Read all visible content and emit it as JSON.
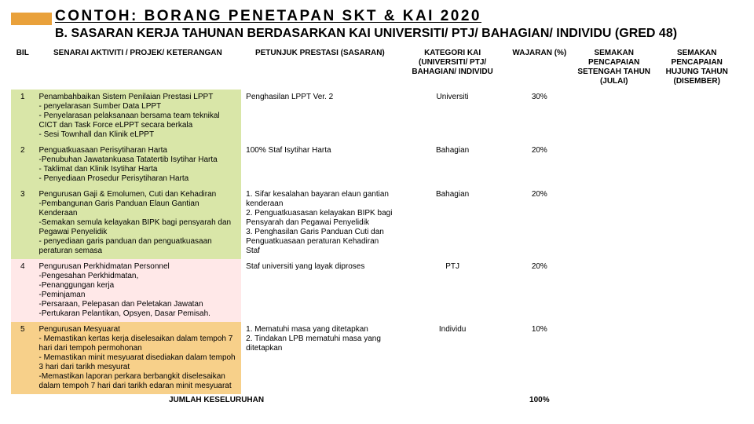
{
  "colors": {
    "accent": "#e9a13b",
    "group1": "#d9e6a8",
    "group2": "#ffe8e8",
    "group3": "#f7d08a",
    "text": "#1a1a1a"
  },
  "title": "CONTOH: BORANG PENETAPAN SKT & KAI 2020",
  "subtitle": "B. SASARAN KERJA TAHUNAN BERDASARKAN KAI UNIVERSITI/ PTJ/ BAHAGIAN/ INDIVIDU (GRED 48)",
  "table": {
    "headers": {
      "bil": "BIL",
      "aktiviti": "SENARAI AKTIVITI / PROJEK/ KETERANGAN",
      "petunjuk": "PETUNJUK PRESTASI (SASARAN)",
      "kategori": "KATEGORI KAI (UNIVERSITI/ PTJ/ BAHAGIAN/ INDIVIDU",
      "wajaran": "WAJARAN (%)",
      "semakan1": "SEMAKAN PENCAPAIAN SETENGAH TAHUN (JULAI)",
      "semakan2": "SEMAKAN PENCAPAIAN HUJUNG TAHUN (DISEMBER)"
    },
    "rows": [
      {
        "bil": "1",
        "group": 1,
        "aktiviti": "Penambahbaikan Sistem Penilaian Prestasi LPPT\n- penyelarasan Sumber Data LPPT\n- Penyelarasan pelaksanaan bersama team teknikal CICT dan Task Force eLPPT secara berkala\n- Sesi Townhall dan Klinik eLPPT",
        "petunjuk": "Penghasilan LPPT Ver. 2",
        "kategori": "Universiti",
        "wajaran": "30%"
      },
      {
        "bil": "2",
        "group": 1,
        "aktiviti": "Penguatkuasaan Perisytiharan Harta\n-Penubuhan Jawatankuasa Tatatertib Isytihar Harta\n- Taklimat dan Klinik Isytihar Harta\n- Penyediaan Prosedur Perisytiharan Harta",
        "petunjuk": "100% Staf Isytihar Harta",
        "kategori": "Bahagian",
        "wajaran": "20%"
      },
      {
        "bil": "3",
        "group": 1,
        "aktiviti": "Pengurusan Gaji & Emolumen, Cuti dan Kehadiran\n-Pembangunan Garis Panduan Elaun Gantian Kenderaan\n-Semakan semula kelayakan BIPK bagi pensyarah dan Pegawai Penyelidik\n- penyediaan garis panduan dan penguatkuasaan peraturan semasa",
        "petunjuk": "1. Sifar kesalahan bayaran elaun gantian kenderaan\n2. Penguatkuasasan kelayakan BIPK bagi Pensyarah dan Pegawai Penyelidik\n3. Penghasilan Garis Panduan Cuti dan Penguatkuasaan peraturan Kehadiran Staf",
        "kategori": "Bahagian",
        "wajaran": "20%"
      },
      {
        "bil": "4",
        "group": 2,
        "aktiviti": "Pengurusan Perkhidmatan Personnel\n-Pengesahan Perkhidmatan,\n-Penanggungan kerja\n-Peminjaman\n-Persaraan, Pelepasan dan Peletakan Jawatan\n-Pertukaran Pelantikan, Opsyen, Dasar Pemisah.",
        "petunjuk": "Staf universiti yang layak diproses",
        "kategori": "PTJ",
        "wajaran": "20%"
      },
      {
        "bil": "5",
        "group": 3,
        "aktiviti": "Pengurusan Mesyuarat\n- Memastikan kertas kerja diselesaikan dalam tempoh 7 hari dari tempoh permohonan\n- Memastikan minit mesyuarat disediakan dalam tempoh 3 hari dari tarikh mesyurat\n-Memastikan laporan perkara berbangkit diselesaikan dalam tempoh 7 hari dari tarikh edaran minit mesyuarat",
        "petunjuk": "1. Mematuhi masa yang ditetapkan\n2. Tindakan LPB mematuhi masa yang ditetapkan",
        "kategori": "Individu",
        "wajaran": "10%"
      }
    ],
    "footer": {
      "label": "JUMLAH KESELURUHAN",
      "total": "100%"
    }
  }
}
